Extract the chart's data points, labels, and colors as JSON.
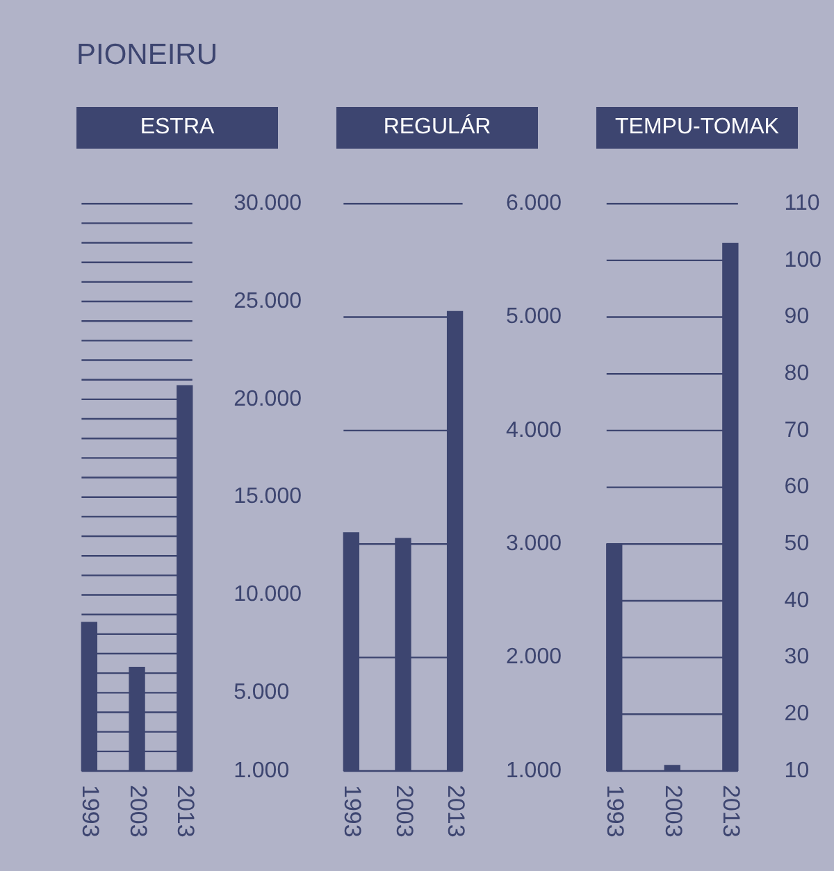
{
  "chart_data": [
    {
      "type": "bar",
      "title": "PIONEIRU",
      "subtitle": "ESTRA",
      "categories": [
        "1993",
        "2003",
        "2013"
      ],
      "values": [
        8600,
        6300,
        20700
      ],
      "color": "#3d4570",
      "ylim": [
        1000,
        30000
      ],
      "grid": true,
      "yticks": [
        {
          "value": 1000,
          "label": "1.000"
        },
        {
          "value": 2000,
          "label": null
        },
        {
          "value": 3000,
          "label": null
        },
        {
          "value": 4000,
          "label": null
        },
        {
          "value": 5000,
          "label": "5.000"
        },
        {
          "value": 6000,
          "label": null
        },
        {
          "value": 7000,
          "label": null
        },
        {
          "value": 8000,
          "label": null
        },
        {
          "value": 9000,
          "label": null
        },
        {
          "value": 10000,
          "label": "10.000"
        },
        {
          "value": 11000,
          "label": null
        },
        {
          "value": 12000,
          "label": null
        },
        {
          "value": 13000,
          "label": null
        },
        {
          "value": 14000,
          "label": null
        },
        {
          "value": 15000,
          "label": "15.000"
        },
        {
          "value": 16000,
          "label": null
        },
        {
          "value": 17000,
          "label": null
        },
        {
          "value": 18000,
          "label": null
        },
        {
          "value": 19000,
          "label": null
        },
        {
          "value": 20000,
          "label": "20.000"
        },
        {
          "value": 21000,
          "label": null
        },
        {
          "value": 22000,
          "label": null
        },
        {
          "value": 23000,
          "label": null
        },
        {
          "value": 24000,
          "label": null
        },
        {
          "value": 25000,
          "label": "25.000"
        },
        {
          "value": 26000,
          "label": null
        },
        {
          "value": 27000,
          "label": null
        },
        {
          "value": 28000,
          "label": null
        },
        {
          "value": 29000,
          "label": null
        },
        {
          "value": 30000,
          "label": "30.000"
        }
      ]
    },
    {
      "type": "bar",
      "subtitle": "REGULÁR",
      "categories": [
        "1993",
        "2003",
        "2013"
      ],
      "values": [
        3100,
        3050,
        5050
      ],
      "color": "#3d4570",
      "ylim": [
        1000,
        6000
      ],
      "grid": true,
      "yticks": [
        {
          "value": 1000,
          "label": "1.000"
        },
        {
          "value": 2000,
          "label": "2.000"
        },
        {
          "value": 3000,
          "label": "3.000"
        },
        {
          "value": 4000,
          "label": "4.000"
        },
        {
          "value": 5000,
          "label": "5.000"
        },
        {
          "value": 6000,
          "label": "6.000"
        }
      ]
    },
    {
      "type": "bar",
      "subtitle": "TEMPU-TOMAK",
      "categories": [
        "1993",
        "2003",
        "2013"
      ],
      "values": [
        50,
        11,
        103
      ],
      "color": "#3d4570",
      "ylim": [
        10,
        110
      ],
      "grid": true,
      "yticks": [
        10,
        20,
        30,
        40,
        50,
        60,
        70,
        80,
        90,
        100,
        110
      ]
    }
  ]
}
